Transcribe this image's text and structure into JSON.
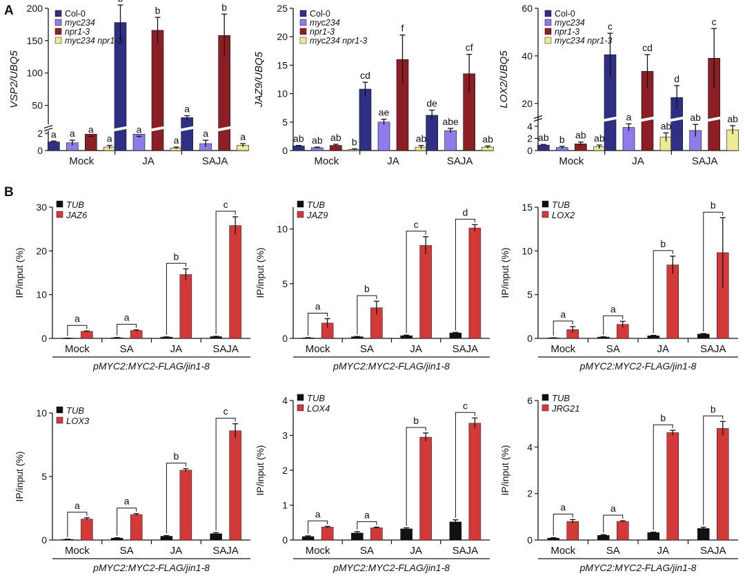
{
  "panels": {
    "A": "A",
    "B": "B"
  },
  "colors": {
    "col0": "#2f2f86",
    "myc234": "#8f7cea",
    "npr1": "#8c1f25",
    "double": "#eceb94",
    "tub": "#111111",
    "chip": "#d23a3a"
  },
  "chart_data": [
    {
      "type": "bar",
      "panel": "A",
      "ylabel": "VSP2/UBQ5",
      "categories": [
        "Mock",
        "JA",
        "SAJA"
      ],
      "axis_break": {
        "lower_max": 2,
        "upper_min": 25
      },
      "lower_ticks": [
        0,
        2
      ],
      "upper_ticks": [
        50,
        100,
        150,
        200
      ],
      "legend": [
        "Col-0",
        "myc234",
        "npr1-3",
        "myc234 npr1-3"
      ],
      "series": [
        {
          "name": "Col-0",
          "values": [
            1.0,
            178,
            31
          ],
          "errors": [
            0.1,
            27,
            3
          ],
          "letters": [
            "a",
            "b",
            "a"
          ]
        },
        {
          "name": "myc234",
          "values": [
            0.9,
            1.9,
            0.8
          ],
          "errors": [
            0.3,
            0.4,
            0.4
          ],
          "letters": [
            "a",
            "a",
            "a"
          ]
        },
        {
          "name": "npr1-3",
          "values": [
            1.9,
            166,
            158
          ],
          "errors": [
            0.3,
            20,
            33
          ],
          "letters": [
            "a",
            "b",
            "b"
          ]
        },
        {
          "name": "myc234 npr1-3",
          "values": [
            0.4,
            0.3,
            0.6
          ],
          "errors": [
            0.2,
            0.1,
            0.2
          ],
          "letters": [
            "a",
            "a",
            "a"
          ]
        }
      ]
    },
    {
      "type": "bar",
      "panel": "A",
      "ylabel": "JAZ9/UBQ5",
      "categories": [
        "Mock",
        "JA",
        "SAJA"
      ],
      "ylim": [
        0,
        25
      ],
      "ticks": [
        0,
        5,
        10,
        15,
        20,
        25
      ],
      "legend": [
        "Col-0",
        "myc234",
        "npr1-3",
        "myc234 npr1-3"
      ],
      "series": [
        {
          "name": "Col-0",
          "values": [
            0.8,
            10.8,
            6.2
          ],
          "errors": [
            0.1,
            1.2,
            0.9
          ],
          "letters": [
            "ab",
            "cd",
            "de"
          ]
        },
        {
          "name": "myc234",
          "values": [
            0.5,
            5.0,
            3.5
          ],
          "errors": [
            0.1,
            0.5,
            0.4
          ],
          "letters": [
            "ab",
            "ae",
            "abe"
          ]
        },
        {
          "name": "npr1-3",
          "values": [
            0.9,
            16.0,
            13.5
          ],
          "errors": [
            0.2,
            4.3,
            3.4
          ],
          "letters": [
            "ab",
            "f",
            "cf"
          ]
        },
        {
          "name": "myc234 npr1-3",
          "values": [
            0.2,
            0.6,
            0.6
          ],
          "errors": [
            0.1,
            0.3,
            0.2
          ],
          "letters": [
            "b",
            "ab",
            "ab"
          ]
        }
      ]
    },
    {
      "type": "bar",
      "panel": "A",
      "ylabel": "LOX2/UBQ5",
      "categories": [
        "Mock",
        "JA",
        "SAJA"
      ],
      "axis_break": {
        "lower_max": 5,
        "upper_min": 15
      },
      "lower_ticks": [
        0,
        2,
        4
      ],
      "upper_ticks": [
        20,
        40,
        60
      ],
      "legend": [
        "Col-0",
        "myc234",
        "npr1-3",
        "myc234 npr1-3"
      ],
      "series": [
        {
          "name": "Col-0",
          "values": [
            0.9,
            40.5,
            22.5
          ],
          "errors": [
            0.1,
            9,
            5
          ],
          "letters": [
            "ab",
            "c",
            "d"
          ]
        },
        {
          "name": "myc234",
          "values": [
            0.5,
            3.8,
            3.3
          ],
          "errors": [
            0.2,
            0.6,
            1.0
          ],
          "letters": [
            "b",
            "a",
            "ab"
          ]
        },
        {
          "name": "npr1-3",
          "values": [
            1.1,
            33.5,
            39
          ],
          "errors": [
            0.3,
            7,
            12.5
          ],
          "letters": [
            "ab",
            "cd",
            "c"
          ]
        },
        {
          "name": "myc234 npr1-3",
          "values": [
            0.6,
            2.2,
            3.4
          ],
          "errors": [
            0.3,
            0.7,
            0.7
          ],
          "letters": [
            "ab",
            "ab",
            "ab"
          ]
        }
      ]
    },
    {
      "type": "bar",
      "panel": "B",
      "ylabel": "IP/input (%)",
      "xlabel": "pMYC2:MYC2-FLAG/jin1-8",
      "categories": [
        "Mock",
        "SA",
        "JA",
        "SAJA"
      ],
      "ylim": [
        0,
        30
      ],
      "ticks": [
        0,
        10,
        20,
        30
      ],
      "legend": [
        "TUB",
        "JAZ6"
      ],
      "series": [
        {
          "name": "TUB",
          "values": [
            0.05,
            0.15,
            0.3,
            0.4
          ],
          "errors": [
            0.02,
            0.05,
            0.05,
            0.08
          ]
        },
        {
          "name": "JAZ6",
          "values": [
            1.6,
            1.8,
            14.6,
            25.8
          ],
          "errors": [
            0.1,
            0.15,
            1.3,
            2.0
          ]
        }
      ],
      "letters": [
        "a",
        "a",
        "b",
        "c"
      ]
    },
    {
      "type": "bar",
      "panel": "B",
      "ylabel": "IP/input (%)",
      "xlabel": "pMYC2:MYC2-FLAG/jin1-8",
      "categories": [
        "Mock",
        "SA",
        "JA",
        "SAJA"
      ],
      "ylim": [
        0,
        12
      ],
      "ticks": [
        0,
        5,
        10
      ],
      "legend": [
        "TUB",
        "JAZ9"
      ],
      "series": [
        {
          "name": "TUB",
          "values": [
            0.05,
            0.15,
            0.25,
            0.5
          ],
          "errors": [
            0.02,
            0.03,
            0.05,
            0.05
          ]
        },
        {
          "name": "JAZ9",
          "values": [
            1.4,
            2.8,
            8.5,
            10.1
          ],
          "errors": [
            0.4,
            0.6,
            0.8,
            0.3
          ]
        }
      ],
      "letters": [
        "a",
        "b",
        "c",
        "d"
      ]
    },
    {
      "type": "bar",
      "panel": "B",
      "ylabel": "IP/input (%)",
      "xlabel": "pMYC2:MYC2-FLAG/jin1-8",
      "categories": [
        "Mock",
        "SA",
        "JA",
        "SAJA"
      ],
      "ylim": [
        0,
        15
      ],
      "ticks": [
        0,
        5,
        10,
        15
      ],
      "legend": [
        "TUB",
        "LOX2"
      ],
      "series": [
        {
          "name": "TUB",
          "values": [
            0.05,
            0.15,
            0.3,
            0.5
          ],
          "errors": [
            0.02,
            0.03,
            0.05,
            0.05
          ]
        },
        {
          "name": "LOX2",
          "values": [
            1.0,
            1.6,
            8.4,
            9.8
          ],
          "errors": [
            0.35,
            0.35,
            1.0,
            4.0
          ]
        }
      ],
      "letters": [
        "a",
        "a",
        "b",
        "b"
      ]
    },
    {
      "type": "bar",
      "panel": "B",
      "ylabel": "IP/input (%)",
      "xlabel": "pMYC2:MYC2-FLAG/jin1-8",
      "categories": [
        "Mock",
        "SA",
        "JA",
        "SAJA"
      ],
      "ylim": [
        0,
        10
      ],
      "ticks": [
        0,
        5,
        10
      ],
      "legend": [
        "TUB",
        "LOX3"
      ],
      "series": [
        {
          "name": "TUB",
          "values": [
            0.05,
            0.15,
            0.3,
            0.5
          ],
          "errors": [
            0.02,
            0.03,
            0.05,
            0.08
          ]
        },
        {
          "name": "LOX3",
          "values": [
            1.65,
            2.0,
            5.5,
            8.6
          ],
          "errors": [
            0.1,
            0.08,
            0.12,
            0.55
          ]
        }
      ],
      "letters": [
        "a",
        "a",
        "b",
        "c"
      ]
    },
    {
      "type": "bar",
      "panel": "B",
      "ylabel": "IP/input (%)",
      "xlabel": "pMYC2:MYC2-FLAG/jin1-8",
      "categories": [
        "Mock",
        "SA",
        "JA",
        "SAJA"
      ],
      "ylim": [
        0,
        4
      ],
      "ticks": [
        0,
        1,
        2,
        3,
        4
      ],
      "legend": [
        "TUB",
        "LOX4"
      ],
      "series": [
        {
          "name": "TUB",
          "values": [
            0.1,
            0.2,
            0.32,
            0.52
          ],
          "errors": [
            0.02,
            0.04,
            0.03,
            0.06
          ]
        },
        {
          "name": "LOX4",
          "values": [
            0.37,
            0.35,
            2.95,
            3.35
          ],
          "errors": [
            0.02,
            0.02,
            0.12,
            0.15
          ]
        }
      ],
      "letters": [
        "a",
        "a",
        "b",
        "c"
      ]
    },
    {
      "type": "bar",
      "panel": "B",
      "ylabel": "IP/input (%)",
      "xlabel": "pMYC2:MYC2-FLAG/jin1-8",
      "categories": [
        "Mock",
        "SA",
        "JA",
        "SAJA"
      ],
      "ylim": [
        0,
        6
      ],
      "ticks": [
        0,
        2,
        4,
        6
      ],
      "legend": [
        "TUB",
        "JRG21"
      ],
      "series": [
        {
          "name": "TUB",
          "values": [
            0.08,
            0.2,
            0.32,
            0.5
          ],
          "errors": [
            0.02,
            0.03,
            0.02,
            0.05
          ]
        },
        {
          "name": "JRG21",
          "values": [
            0.8,
            0.8,
            4.62,
            4.8
          ],
          "errors": [
            0.08,
            0.03,
            0.1,
            0.3
          ]
        }
      ],
      "letters": [
        "a",
        "a",
        "b",
        "b"
      ]
    }
  ]
}
